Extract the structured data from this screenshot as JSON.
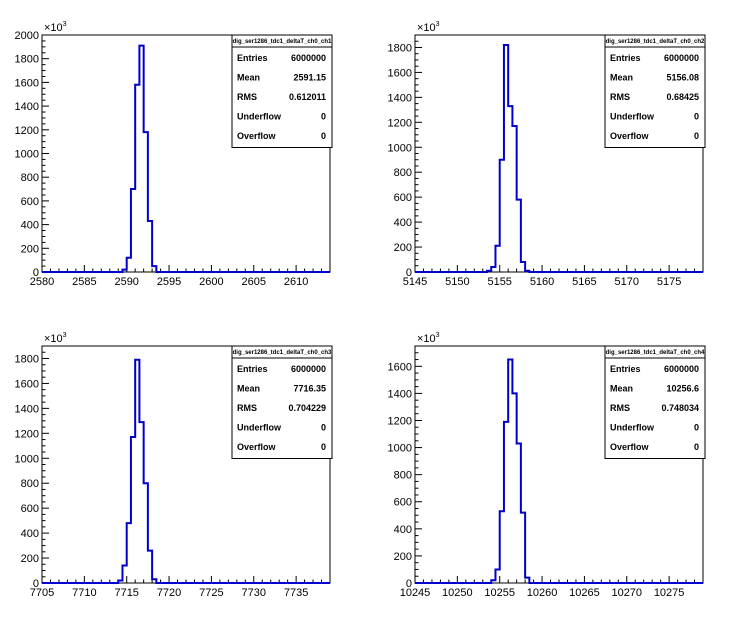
{
  "chart_data": [
    {
      "type": "histogram",
      "stats_title": "dig_ser1286_tdc1_deltaT_ch0_ch1",
      "y_multiplier": "×10³",
      "y_multiplier_base": "10",
      "y_multiplier_exp": "3",
      "xlim": [
        2580,
        2614
      ],
      "ylim": [
        0,
        2000
      ],
      "x_ticks": [
        "2580",
        "2585",
        "2590",
        "2595",
        "2600",
        "2605",
        "2610"
      ],
      "y_ticks": [
        "0",
        "200",
        "400",
        "600",
        "800",
        "1000",
        "1200",
        "1400",
        "1600",
        "1800",
        "2000"
      ],
      "bin_width": 0.5,
      "bins": [
        [
          2589.5,
          20
        ],
        [
          2590.0,
          120
        ],
        [
          2590.5,
          700
        ],
        [
          2591.0,
          1580
        ],
        [
          2591.5,
          1910
        ],
        [
          2592.0,
          1180
        ],
        [
          2592.5,
          430
        ],
        [
          2593.0,
          50
        ]
      ],
      "stats": {
        "entries_label": "Entries",
        "entries": "6000000",
        "mean_label": "Mean",
        "mean": "2591.15",
        "rms_label": "RMS",
        "rms": "0.612011",
        "underflow_label": "Underflow",
        "underflow": "0",
        "overflow_label": "Overflow",
        "overflow": "0"
      }
    },
    {
      "type": "histogram",
      "stats_title": "dig_ser1286_tdc1_deltaT_ch0_ch2",
      "y_multiplier": "×10³",
      "y_multiplier_base": "10",
      "y_multiplier_exp": "3",
      "xlim": [
        5145,
        5179
      ],
      "ylim": [
        0,
        1900
      ],
      "x_ticks": [
        "5145",
        "5150",
        "5155",
        "5160",
        "5165",
        "5170",
        "5175"
      ],
      "y_ticks": [
        "0",
        "200",
        "400",
        "600",
        "800",
        "1000",
        "1200",
        "1400",
        "1600",
        "1800"
      ],
      "bin_width": 0.5,
      "bins": [
        [
          5153.5,
          10
        ],
        [
          5154.0,
          40
        ],
        [
          5154.5,
          210
        ],
        [
          5155.0,
          900
        ],
        [
          5155.5,
          1820
        ],
        [
          5156.0,
          1330
        ],
        [
          5156.5,
          1170
        ],
        [
          5157.0,
          580
        ],
        [
          5157.5,
          80
        ],
        [
          5158.0,
          10
        ]
      ],
      "stats": {
        "entries_label": "Entries",
        "entries": "6000000",
        "mean_label": "Mean",
        "mean": "5156.08",
        "rms_label": "RMS",
        "rms": "0.68425",
        "underflow_label": "Underflow",
        "underflow": "0",
        "overflow_label": "Overflow",
        "overflow": "0"
      }
    },
    {
      "type": "histogram",
      "stats_title": "dig_ser1286_tdc1_deltaT_ch0_ch3",
      "y_multiplier": "×10³",
      "y_multiplier_base": "10",
      "y_multiplier_exp": "3",
      "xlim": [
        7705,
        7739
      ],
      "ylim": [
        0,
        1900
      ],
      "x_ticks": [
        "7705",
        "7710",
        "7715",
        "7720",
        "7725",
        "7730",
        "7735"
      ],
      "y_ticks": [
        "0",
        "200",
        "400",
        "600",
        "800",
        "1000",
        "1200",
        "1400",
        "1600",
        "1800"
      ],
      "bin_width": 0.5,
      "bins": [
        [
          7714.0,
          20
        ],
        [
          7714.5,
          140
        ],
        [
          7715.0,
          480
        ],
        [
          7715.5,
          1170
        ],
        [
          7716.0,
          1790
        ],
        [
          7716.5,
          1290
        ],
        [
          7717.0,
          800
        ],
        [
          7717.5,
          260
        ],
        [
          7718.0,
          30
        ]
      ],
      "stats": {
        "entries_label": "Entries",
        "entries": "6000000",
        "mean_label": "Mean",
        "mean": "7716.35",
        "rms_label": "RMS",
        "rms": "0.704229",
        "underflow_label": "Underflow",
        "underflow": "0",
        "overflow_label": "Overflow",
        "overflow": "0"
      }
    },
    {
      "type": "histogram",
      "stats_title": "dig_ser1286_tdc1_deltaT_ch0_ch4",
      "y_multiplier": "×10³",
      "y_multiplier_base": "10",
      "y_multiplier_exp": "3",
      "xlim": [
        10245,
        10279
      ],
      "ylim": [
        0,
        1750
      ],
      "x_ticks": [
        "10245",
        "10250",
        "10255",
        "10260",
        "10265",
        "10270",
        "10275"
      ],
      "y_ticks": [
        "0",
        "200",
        "400",
        "600",
        "800",
        "1000",
        "1200",
        "1400",
        "1600"
      ],
      "bin_width": 0.5,
      "bins": [
        [
          10254.0,
          20
        ],
        [
          10254.5,
          100
        ],
        [
          10255.0,
          530
        ],
        [
          10255.5,
          1190
        ],
        [
          10256.0,
          1650
        ],
        [
          10256.5,
          1400
        ],
        [
          10257.0,
          1030
        ],
        [
          10257.5,
          520
        ],
        [
          10258.0,
          40
        ]
      ],
      "stats": {
        "entries_label": "Entries",
        "entries": "6000000",
        "mean_label": "Mean",
        "mean": "10256.6",
        "rms_label": "RMS",
        "rms": "0.748034",
        "underflow_label": "Underflow",
        "underflow": "0",
        "overflow_label": "Overflow",
        "overflow": "0"
      }
    }
  ],
  "colors": {
    "histogram_line": "#0000cc",
    "axes": "#000000",
    "background": "#ffffff"
  }
}
